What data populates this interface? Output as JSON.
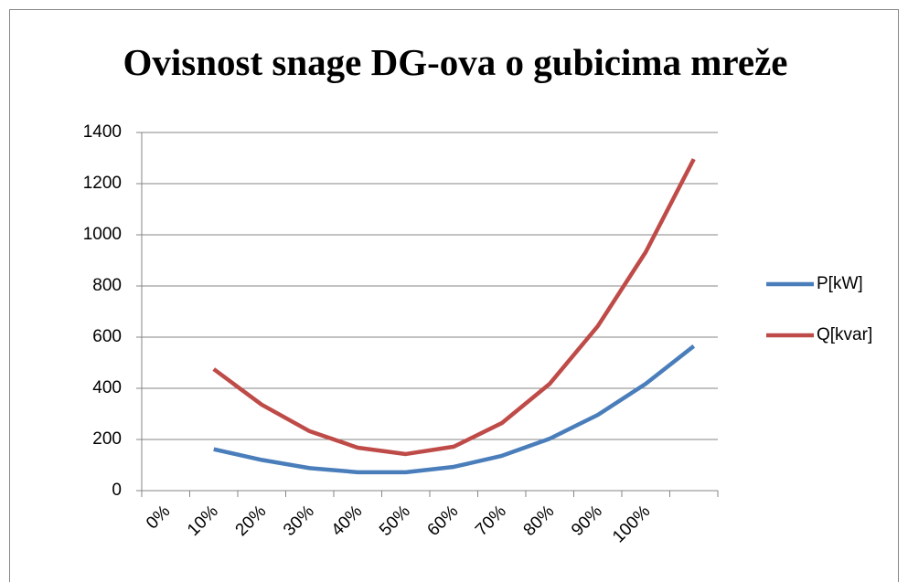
{
  "chart_data": {
    "type": "line",
    "title": "Ovisnost snage DG-ova o gubicima mreže",
    "categories": [
      "0%",
      "10%",
      "20%",
      "30%",
      "40%",
      "50%",
      "60%",
      "70%",
      "80%",
      "90%",
      "100%",
      null
    ],
    "series": [
      {
        "name": "P[kW]",
        "color": "#4a7ebb",
        "values": [
          null,
          162,
          120,
          88,
          72,
          72,
          93,
          136,
          203,
          296,
          418,
          565
        ]
      },
      {
        "name": "Q[kvar]",
        "color": "#be4b48",
        "values": [
          null,
          475,
          336,
          232,
          168,
          143,
          172,
          264,
          418,
          643,
          933,
          1296
        ]
      }
    ],
    "ylim": [
      0,
      1400
    ],
    "yticks": [
      0,
      200,
      400,
      600,
      800,
      1000,
      1200,
      1400
    ],
    "grid": true,
    "legend": "right"
  }
}
